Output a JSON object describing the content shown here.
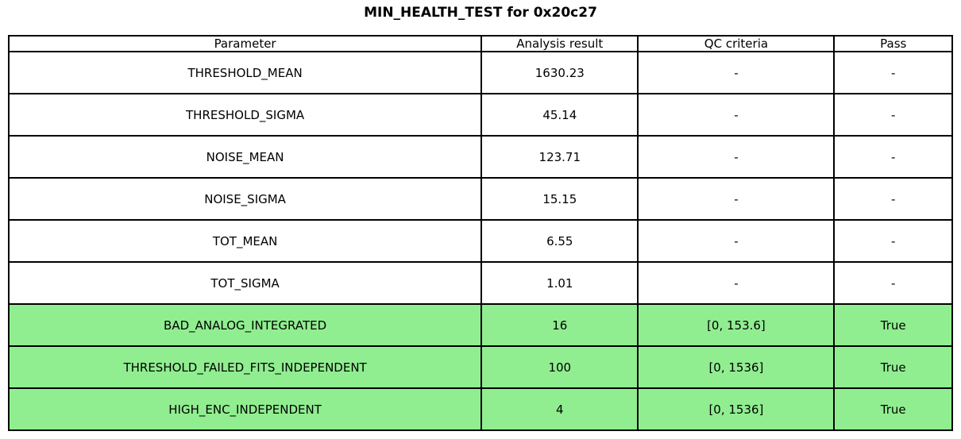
{
  "title": "MIN_HEALTH_TEST for 0x20c27",
  "chart_data": {
    "type": "table",
    "title": "MIN_HEALTH_TEST for 0x20c27",
    "columns": [
      "Parameter",
      "Analysis result",
      "QC criteria",
      "Pass"
    ],
    "rows": [
      {
        "parameter": "THRESHOLD_MEAN",
        "analysis_result": "1630.23",
        "qc_criteria": "-",
        "pass": "-",
        "highlighted": false
      },
      {
        "parameter": "THRESHOLD_SIGMA",
        "analysis_result": "45.14",
        "qc_criteria": "-",
        "pass": "-",
        "highlighted": false
      },
      {
        "parameter": "NOISE_MEAN",
        "analysis_result": "123.71",
        "qc_criteria": "-",
        "pass": "-",
        "highlighted": false
      },
      {
        "parameter": "NOISE_SIGMA",
        "analysis_result": "15.15",
        "qc_criteria": "-",
        "pass": "-",
        "highlighted": false
      },
      {
        "parameter": "TOT_MEAN",
        "analysis_result": "6.55",
        "qc_criteria": "-",
        "pass": "-",
        "highlighted": false
      },
      {
        "parameter": "TOT_SIGMA",
        "analysis_result": "1.01",
        "qc_criteria": "-",
        "pass": "-",
        "highlighted": false
      },
      {
        "parameter": "BAD_ANALOG_INTEGRATED",
        "analysis_result": "16",
        "qc_criteria": "[0, 153.6]",
        "pass": "True",
        "highlighted": true
      },
      {
        "parameter": "THRESHOLD_FAILED_FITS_INDEPENDENT",
        "analysis_result": "100",
        "qc_criteria": "[0, 1536]",
        "pass": "True",
        "highlighted": true
      },
      {
        "parameter": "HIGH_ENC_INDEPENDENT",
        "analysis_result": "4",
        "qc_criteria": "[0, 1536]",
        "pass": "True",
        "highlighted": true
      }
    ],
    "layout": {
      "grid": true,
      "border_color": "#000000",
      "background_color": "#ffffff",
      "highlight_color": "#90EE90",
      "text_color": "#000000"
    }
  }
}
